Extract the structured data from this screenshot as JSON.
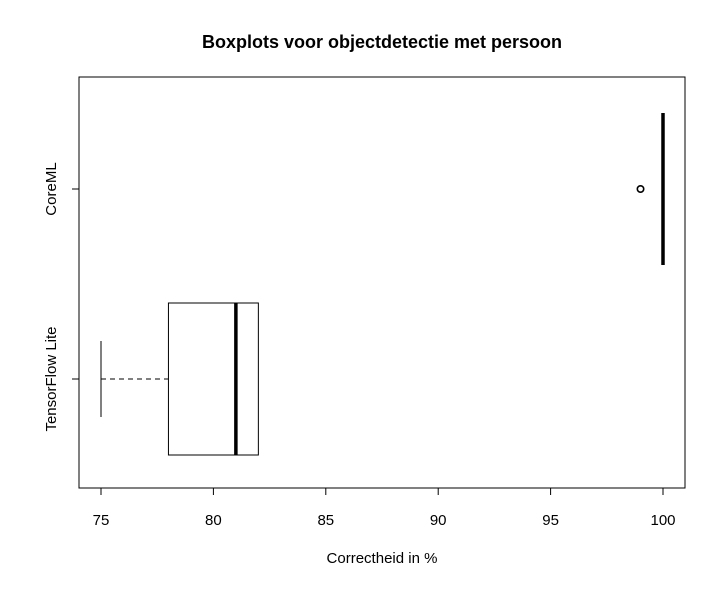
{
  "chart_data": {
    "type": "boxplot",
    "orientation": "horizontal",
    "title": "Boxplots voor objectdetectie met persoon",
    "xlabel": "Correctheid in %",
    "ylabel": "",
    "xlim": [
      74,
      101
    ],
    "xticks": [
      75,
      80,
      85,
      90,
      95,
      100
    ],
    "xtick_labels": [
      "75",
      "80",
      "85",
      "90",
      "95",
      "100"
    ],
    "categories": [
      "TensorFlow Lite",
      "CoreML"
    ],
    "series": [
      {
        "category": "TensorFlow Lite",
        "min": 75,
        "q1": 78,
        "median": 81,
        "q3": 82,
        "max": 82,
        "outliers": []
      },
      {
        "category": "CoreML",
        "min": 100,
        "q1": 100,
        "median": 100,
        "q3": 100,
        "max": 100,
        "outliers": [
          99
        ]
      }
    ],
    "grid": false,
    "legend": "none",
    "colors": {
      "box_fill": "#ffffff",
      "stroke": "#000000",
      "background": "#ffffff"
    }
  }
}
